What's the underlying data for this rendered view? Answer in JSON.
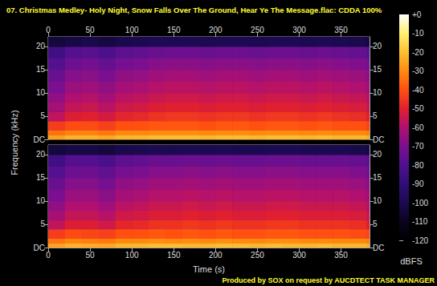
{
  "chart_data": {
    "type": "spectrogram",
    "title": "07. Christmas Medley- Holy Night, Snow Falls Over The Ground, Hear Ye The Message.flac: CDDA 100%",
    "xlabel": "Time (s)",
    "ylabel": "Frequency (kHz)",
    "footer": "Produced by SOX on request by AUCDTECT TASK MANAGER",
    "xlim": [
      0,
      384
    ],
    "xticks": [
      0,
      50,
      100,
      150,
      200,
      250,
      300,
      350
    ],
    "ylim": [
      0,
      22.05
    ],
    "yticks": [
      {
        "value": 0,
        "label": "DC"
      },
      5,
      10,
      15,
      20
    ],
    "time_bins": [
      0,
      20,
      40,
      60,
      80,
      100,
      120,
      140,
      160,
      180,
      200,
      220,
      240,
      260,
      280,
      300,
      320,
      340,
      360,
      380,
      384
    ],
    "freq_bins": [
      0,
      1,
      2,
      4,
      6,
      8,
      10,
      12.5,
      15,
      17.5,
      20,
      22.05
    ],
    "channels": [
      [
        [
          -26,
          -23,
          -23,
          -25,
          -22,
          -22,
          -21,
          -21,
          -21,
          -22,
          -21,
          -21,
          -22,
          -21,
          -21,
          -22,
          -21,
          -22,
          -22,
          -24
        ],
        [
          -34,
          -31,
          -31,
          -33,
          -30,
          -30,
          -29,
          -29,
          -29,
          -30,
          -29,
          -29,
          -30,
          -29,
          -29,
          -30,
          -29,
          -30,
          -30,
          -32
        ],
        [
          -44,
          -41,
          -41,
          -43,
          -40,
          -40,
          -39,
          -39,
          -39,
          -40,
          -39,
          -39,
          -40,
          -39,
          -39,
          -40,
          -39,
          -40,
          -40,
          -42
        ],
        [
          -57,
          -51,
          -50,
          -53,
          -49,
          -48,
          -46,
          -45,
          -45,
          -46,
          -45,
          -45,
          -46,
          -45,
          -45,
          -46,
          -45,
          -46,
          -47,
          -50
        ],
        [
          -62,
          -56,
          -55,
          -58,
          -54,
          -53,
          -51,
          -50,
          -50,
          -51,
          -50,
          -50,
          -51,
          -50,
          -50,
          -51,
          -50,
          -51,
          -52,
          -55
        ],
        [
          -66,
          -60,
          -59,
          -62,
          -58,
          -57,
          -55,
          -54,
          -54,
          -55,
          -54,
          -54,
          -55,
          -54,
          -54,
          -55,
          -54,
          -55,
          -56,
          -59
        ],
        [
          -70,
          -64,
          -63,
          -66,
          -62,
          -61,
          -59,
          -58,
          -58,
          -59,
          -58,
          -58,
          -59,
          -58,
          -58,
          -59,
          -58,
          -59,
          -60,
          -63
        ],
        [
          -74,
          -68,
          -67,
          -70,
          -66,
          -65,
          -63,
          -62,
          -62,
          -63,
          -62,
          -62,
          -63,
          -62,
          -62,
          -63,
          -62,
          -63,
          -64,
          -67
        ],
        [
          -79,
          -73,
          -72,
          -75,
          -71,
          -70,
          -68,
          -67,
          -67,
          -68,
          -67,
          -67,
          -68,
          -67,
          -67,
          -68,
          -67,
          -68,
          -69,
          -72
        ],
        [
          -85,
          -79,
          -78,
          -81,
          -77,
          -76,
          -74,
          -73,
          -73,
          -74,
          -73,
          -73,
          -74,
          -73,
          -73,
          -74,
          -73,
          -74,
          -75,
          -78
        ],
        [
          -104,
          -102,
          -101,
          -103,
          -101,
          -100,
          -99,
          -99,
          -99,
          -100,
          -99,
          -99,
          -100,
          -99,
          -99,
          -100,
          -99,
          -100,
          -101,
          -103
        ]
      ],
      [
        [
          -26,
          -23,
          -24,
          -25,
          -22,
          -22,
          -21,
          -21,
          -22,
          -22,
          -21,
          -21,
          -22,
          -21,
          -22,
          -22,
          -21,
          -22,
          -22,
          -24
        ],
        [
          -34,
          -31,
          -32,
          -33,
          -30,
          -30,
          -29,
          -30,
          -29,
          -30,
          -29,
          -30,
          -30,
          -29,
          -29,
          -30,
          -30,
          -30,
          -30,
          -32
        ],
        [
          -44,
          -41,
          -42,
          -43,
          -40,
          -40,
          -39,
          -40,
          -39,
          -40,
          -39,
          -40,
          -40,
          -39,
          -39,
          -40,
          -40,
          -40,
          -41,
          -42
        ],
        [
          -57,
          -51,
          -51,
          -54,
          -49,
          -48,
          -46,
          -46,
          -45,
          -46,
          -45,
          -46,
          -46,
          -45,
          -45,
          -46,
          -46,
          -46,
          -47,
          -50
        ],
        [
          -62,
          -56,
          -56,
          -59,
          -54,
          -53,
          -51,
          -51,
          -50,
          -51,
          -50,
          -51,
          -51,
          -50,
          -50,
          -51,
          -51,
          -51,
          -52,
          -55
        ],
        [
          -66,
          -60,
          -60,
          -63,
          -58,
          -57,
          -55,
          -55,
          -54,
          -55,
          -54,
          -55,
          -55,
          -54,
          -54,
          -55,
          -55,
          -55,
          -56,
          -59
        ],
        [
          -70,
          -64,
          -64,
          -67,
          -62,
          -61,
          -59,
          -59,
          -58,
          -59,
          -58,
          -59,
          -59,
          -58,
          -58,
          -59,
          -59,
          -59,
          -60,
          -63
        ],
        [
          -74,
          -68,
          -68,
          -71,
          -66,
          -65,
          -63,
          -63,
          -62,
          -63,
          -62,
          -63,
          -63,
          -62,
          -62,
          -63,
          -63,
          -63,
          -64,
          -67
        ],
        [
          -79,
          -73,
          -73,
          -76,
          -71,
          -70,
          -68,
          -68,
          -67,
          -68,
          -67,
          -68,
          -68,
          -67,
          -67,
          -68,
          -68,
          -68,
          -69,
          -72
        ],
        [
          -85,
          -79,
          -79,
          -82,
          -77,
          -76,
          -74,
          -74,
          -73,
          -74,
          -73,
          -74,
          -74,
          -73,
          -73,
          -74,
          -74,
          -74,
          -75,
          -78
        ],
        [
          -104,
          -102,
          -102,
          -104,
          -101,
          -100,
          -99,
          -100,
          -99,
          -100,
          -99,
          -100,
          -100,
          -99,
          -99,
          -100,
          -100,
          -100,
          -101,
          -103
        ]
      ]
    ],
    "colorbar": {
      "label": "dBFS",
      "range": [
        -120,
        0
      ],
      "ticks": [
        {
          "value": 0,
          "label": "+0"
        },
        -10,
        -20,
        -30,
        -40,
        -50,
        -60,
        -70,
        -80,
        -90,
        -100,
        -110,
        -120
      ]
    }
  }
}
